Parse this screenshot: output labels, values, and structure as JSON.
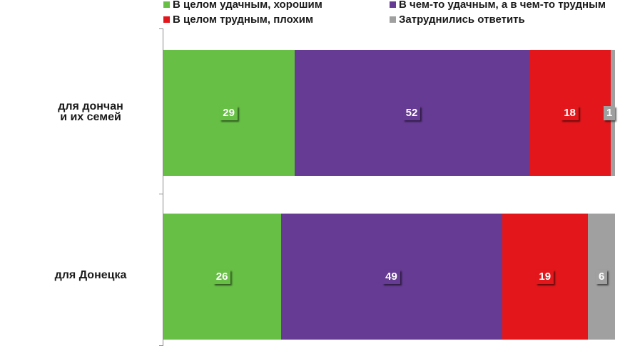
{
  "chart_data": {
    "type": "bar",
    "orientation": "horizontal",
    "stacked": true,
    "categories": [
      "для дончан\nи их семей",
      "для Донецка"
    ],
    "series": [
      {
        "name": "В целом удачным, хорошим",
        "color": "#67bf45",
        "values": [
          29,
          26
        ]
      },
      {
        "name": "В чем-то удачным, а в чем-то трудным",
        "color": "#653b93",
        "values": [
          52,
          49
        ]
      },
      {
        "name": "В целом трудным, плохим",
        "color": "#e3171b",
        "values": [
          18,
          19
        ]
      },
      {
        "name": "Затруднились ответить",
        "color": "#a0a0a0",
        "values": [
          1,
          6
        ]
      }
    ],
    "legend_position": "top",
    "xlim": [
      0,
      100
    ]
  }
}
